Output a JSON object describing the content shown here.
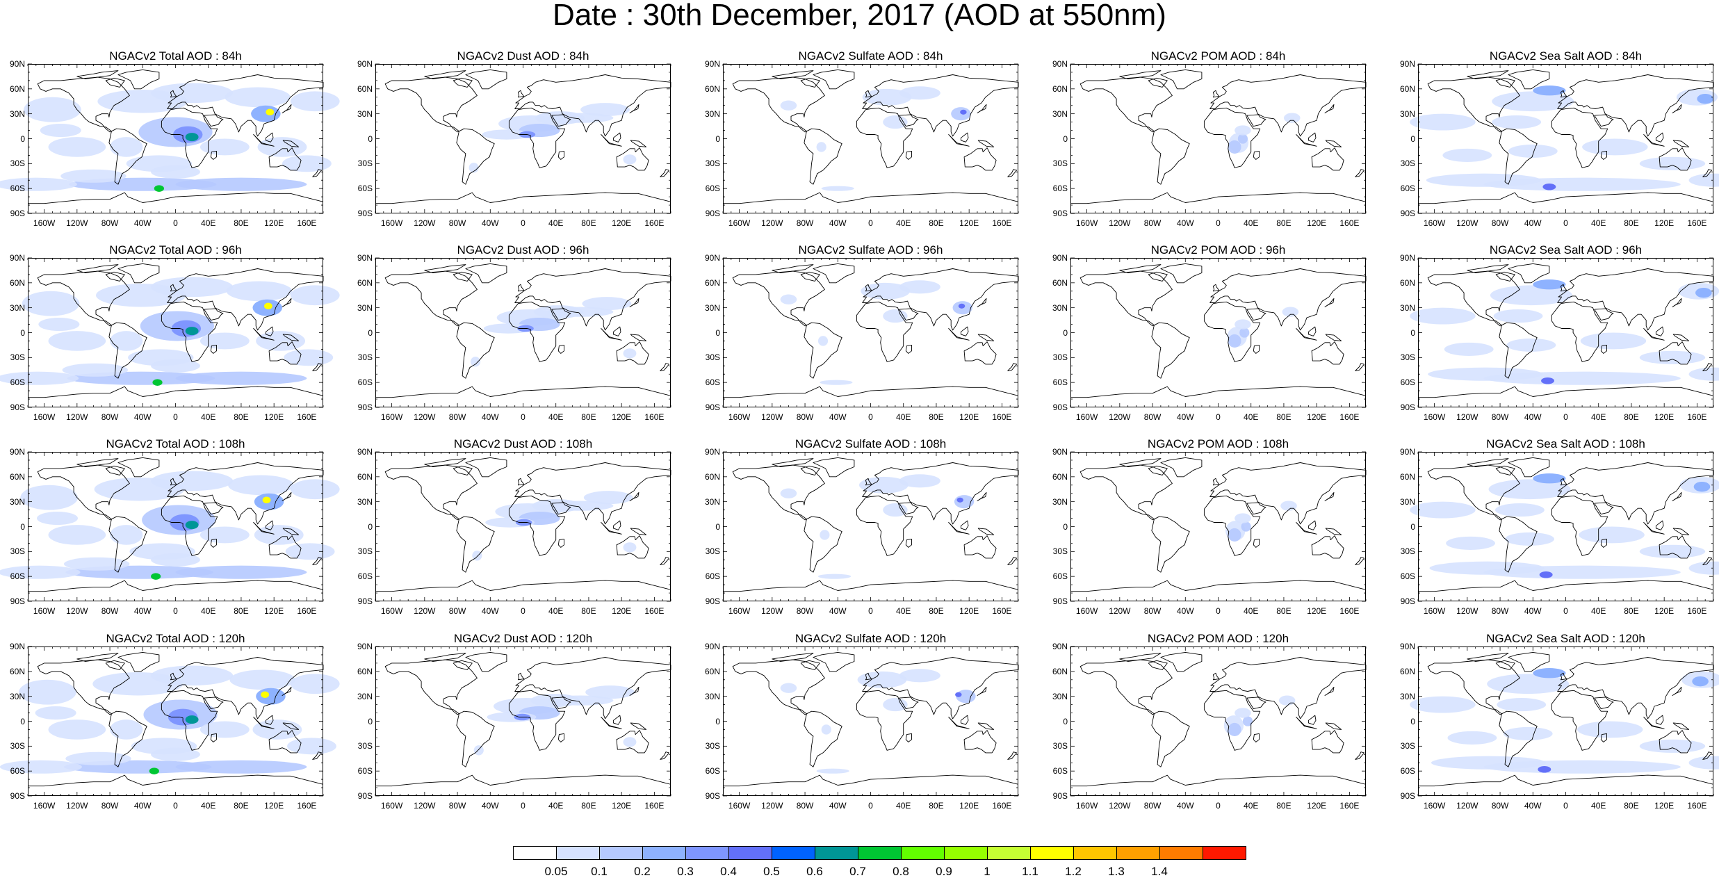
{
  "title": "Date : 30th December, 2017 (AOD at 550nm)",
  "lat_labels": [
    "90N",
    "60N",
    "30N",
    "0",
    "30S",
    "60S",
    "90S"
  ],
  "lon_labels": [
    "160W",
    "120W",
    "80W",
    "40W",
    "0",
    "40E",
    "80E",
    "120E",
    "160E"
  ],
  "panels": [
    {
      "title": "NGACv2 Total AOD : 84h",
      "species": "total",
      "hour": 84
    },
    {
      "title": "NGACv2 Dust AOD : 84h",
      "species": "dust",
      "hour": 84
    },
    {
      "title": "NGACv2 Sulfate AOD : 84h",
      "species": "sulfate",
      "hour": 84
    },
    {
      "title": "NGACv2 POM AOD : 84h",
      "species": "pom",
      "hour": 84
    },
    {
      "title": "NGACv2 Sea Salt AOD : 84h",
      "species": "seasalt",
      "hour": 84
    },
    {
      "title": "NGACv2 Total AOD : 96h",
      "species": "total",
      "hour": 96
    },
    {
      "title": "NGACv2 Dust AOD : 96h",
      "species": "dust",
      "hour": 96
    },
    {
      "title": "NGACv2 Sulfate AOD : 96h",
      "species": "sulfate",
      "hour": 96
    },
    {
      "title": "NGACv2 POM AOD : 96h",
      "species": "pom",
      "hour": 96
    },
    {
      "title": "NGACv2 Sea Salt AOD : 96h",
      "species": "seasalt",
      "hour": 96
    },
    {
      "title": "NGACv2 Total AOD : 108h",
      "species": "total",
      "hour": 108
    },
    {
      "title": "NGACv2 Dust AOD : 108h",
      "species": "dust",
      "hour": 108
    },
    {
      "title": "NGACv2 Sulfate AOD : 108h",
      "species": "sulfate",
      "hour": 108
    },
    {
      "title": "NGACv2 POM AOD : 108h",
      "species": "pom",
      "hour": 108
    },
    {
      "title": "NGACv2 Sea Salt AOD : 108h",
      "species": "seasalt",
      "hour": 108
    },
    {
      "title": "NGACv2 Total AOD : 120h",
      "species": "total",
      "hour": 120
    },
    {
      "title": "NGACv2 Dust AOD : 120h",
      "species": "dust",
      "hour": 120
    },
    {
      "title": "NGACv2 Sulfate AOD : 120h",
      "species": "sulfate",
      "hour": 120
    },
    {
      "title": "NGACv2 POM AOD : 120h",
      "species": "pom",
      "hour": 120
    },
    {
      "title": "NGACv2 Sea Salt  AOD : 120h",
      "species": "seasalt",
      "hour": 120
    }
  ],
  "colorbar": {
    "labels": [
      "0.05",
      "0.1",
      "0.2",
      "0.3",
      "0.4",
      "0.5",
      "0.6",
      "0.7",
      "0.8",
      "0.9",
      "1",
      "1.1",
      "1.2",
      "1.3",
      "1.4"
    ],
    "colors": [
      "#ffffff",
      "#d6e2ff",
      "#b5c9ff",
      "#8eb2ff",
      "#7f96ff",
      "#6370f8",
      "#0063ff",
      "#009696",
      "#00c633",
      "#63ff00",
      "#96ff00",
      "#c6ff33",
      "#ffff00",
      "#ffc600",
      "#ffa000",
      "#ff7c00",
      "#ff1900"
    ]
  }
}
